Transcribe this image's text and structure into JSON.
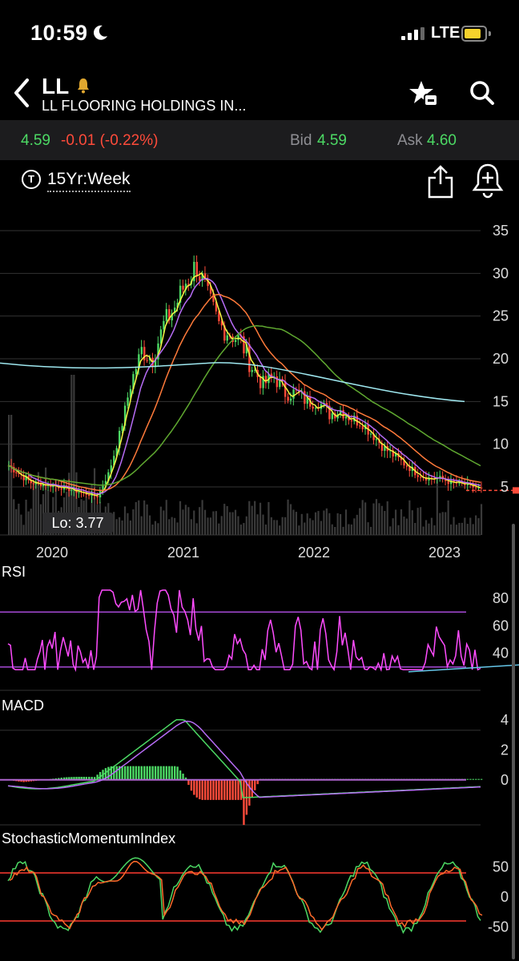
{
  "status_bar": {
    "time": "10:59",
    "network": "LTE"
  },
  "header": {
    "ticker": "LL",
    "company": "LL FLOORING HOLDINGS IN...",
    "icons": [
      "back-chevron-icon",
      "bell-icon",
      "watchlist-star-icon",
      "search-icon"
    ]
  },
  "quote": {
    "last": "4.59",
    "change": "-0.01 (-0.22%)",
    "bid_label": "Bid",
    "bid": "4.59",
    "ask_label": "Ask",
    "ask": "4.60"
  },
  "toolbar": {
    "timeframe": "15Yr:Week",
    "icons": [
      "share-icon",
      "alert-add-icon"
    ]
  },
  "colors": {
    "up": "#4cd964",
    "down": "#ff4b3a",
    "ma_yellow": "#f5f542",
    "ma_purple": "#b66cf5",
    "ma_orange": "#ff7a3a",
    "ma_green": "#5fa830",
    "ma_cyan": "#9fe8f0",
    "rsi": "#ff4cff"
  },
  "chart_data": [
    {
      "type": "candlestick",
      "title": "",
      "x_ticks": [
        "2020",
        "2021",
        "2022",
        "2023"
      ],
      "y_ticks": [
        "35",
        "30",
        "25",
        "20",
        "15",
        "10",
        "5"
      ],
      "ylim": [
        0,
        35
      ],
      "last_price_marker": 4.59,
      "low_label": "Lo: 3.77",
      "close_weekly_approx": [
        {
          "x": "2019-08",
          "y": 7.5
        },
        {
          "x": "2019-10",
          "y": 5.5
        },
        {
          "x": "2019-12",
          "y": 5.2
        },
        {
          "x": "2020-01",
          "y": 4.9
        },
        {
          "x": "2020-03",
          "y": 4.2
        },
        {
          "x": "2020-04",
          "y": 3.9
        },
        {
          "x": "2020-05",
          "y": 6.5
        },
        {
          "x": "2020-06",
          "y": 11
        },
        {
          "x": "2020-07",
          "y": 17
        },
        {
          "x": "2020-08",
          "y": 21
        },
        {
          "x": "2020-09",
          "y": 20
        },
        {
          "x": "2020-10",
          "y": 24
        },
        {
          "x": "2020-11",
          "y": 26
        },
        {
          "x": "2020-12",
          "y": 29
        },
        {
          "x": "2021-01",
          "y": 31
        },
        {
          "x": "2021-02",
          "y": 27
        },
        {
          "x": "2021-03",
          "y": 24
        },
        {
          "x": "2021-04",
          "y": 23
        },
        {
          "x": "2021-05",
          "y": 22
        },
        {
          "x": "2021-06",
          "y": 19
        },
        {
          "x": "2021-07",
          "y": 17
        },
        {
          "x": "2021-08",
          "y": 18
        },
        {
          "x": "2021-09",
          "y": 16
        },
        {
          "x": "2021-10",
          "y": 16
        },
        {
          "x": "2021-11",
          "y": 15
        },
        {
          "x": "2021-12",
          "y": 15
        },
        {
          "x": "2022-01",
          "y": 13.5
        },
        {
          "x": "2022-02",
          "y": 14
        },
        {
          "x": "2022-03",
          "y": 13
        },
        {
          "x": "2022-04",
          "y": 12.5
        },
        {
          "x": "2022-05",
          "y": 11
        },
        {
          "x": "2022-06",
          "y": 9.5
        },
        {
          "x": "2022-07",
          "y": 8.5
        },
        {
          "x": "2022-08",
          "y": 7.5
        },
        {
          "x": "2022-09",
          "y": 6.5
        },
        {
          "x": "2022-10",
          "y": 6
        },
        {
          "x": "2022-11",
          "y": 6
        },
        {
          "x": "2022-12",
          "y": 5.5
        },
        {
          "x": "2023-01",
          "y": 5.3
        },
        {
          "x": "2023-02",
          "y": 5
        },
        {
          "x": "2023-03",
          "y": 4.6
        }
      ]
    },
    {
      "type": "line",
      "title": "RSI",
      "y_ticks": [
        "80",
        "60",
        "40"
      ],
      "ylim": [
        20,
        90
      ],
      "levels": [
        70,
        30
      ]
    },
    {
      "type": "line",
      "title": "MACD",
      "y_ticks": [
        "4",
        "2",
        "0"
      ],
      "ylim": [
        -3,
        5
      ]
    },
    {
      "type": "line",
      "title": "StochasticMomentumIndex",
      "y_ticks": [
        "50",
        "0",
        "-50"
      ],
      "ylim": [
        -80,
        80
      ],
      "levels": [
        40,
        -40
      ]
    }
  ]
}
